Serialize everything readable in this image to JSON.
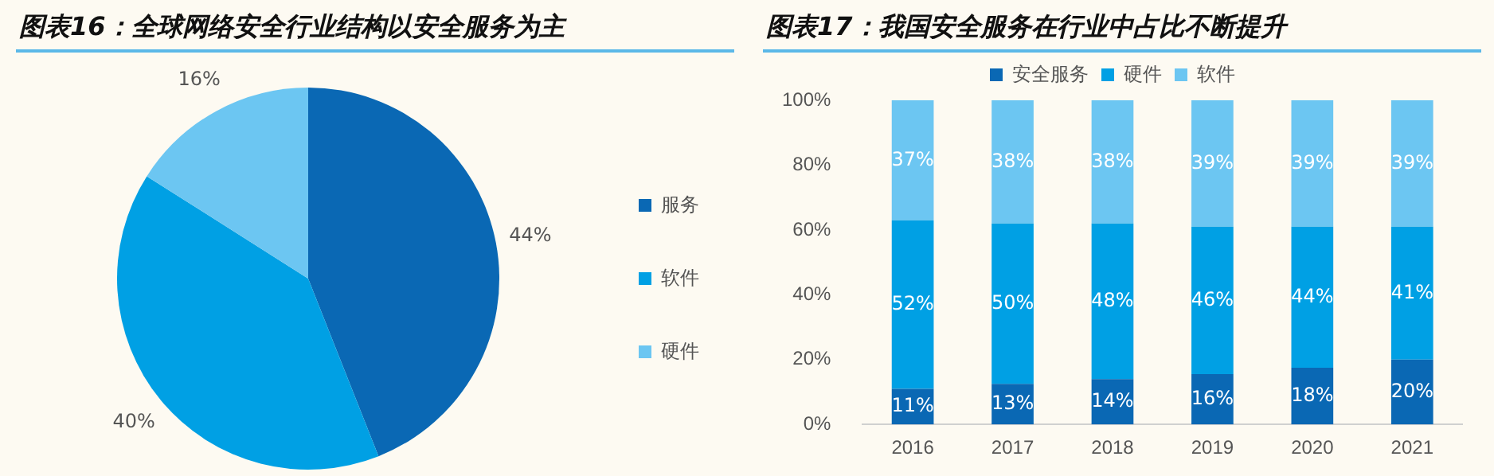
{
  "chart_data": [
    {
      "type": "pie",
      "title": "图表16：全球网络安全行业结构以安全服务为主",
      "categories": [
        "服务",
        "软件",
        "硬件"
      ],
      "values": [
        44,
        40,
        16
      ],
      "colors": [
        "#0a68b4",
        "#00a0e4",
        "#6cc6f2"
      ],
      "value_labels": [
        "44%",
        "40%",
        "16%"
      ],
      "legend": "right"
    },
    {
      "type": "bar",
      "title": "图表17：我国安全服务在行业中占比不断提升",
      "categories": [
        "2016",
        "2017",
        "2018",
        "2019",
        "2020",
        "2021"
      ],
      "stacked": true,
      "legend": "top",
      "grid": false,
      "ylim": [
        0,
        100
      ],
      "yticks": [
        {
          "value": 0,
          "label": "0%"
        },
        {
          "value": 20,
          "label": "20%"
        },
        {
          "value": 40,
          "label": "40%"
        },
        {
          "value": 60,
          "label": "60%"
        },
        {
          "value": 80,
          "label": "80%"
        },
        {
          "value": 100,
          "label": "100%"
        }
      ],
      "series": [
        {
          "name": "安全服务",
          "color": "#0a68b4",
          "values": [
            11,
            12.5,
            14,
            15.5,
            17.5,
            20
          ],
          "value_labels": [
            "11%",
            "13%",
            "14%",
            "16%",
            "18%",
            "20%"
          ]
        },
        {
          "name": "硬件",
          "color": "#00a0e4",
          "values": [
            52,
            49.5,
            48,
            45.5,
            43.5,
            41
          ],
          "value_labels": [
            "52%",
            "50%",
            "48%",
            "46%",
            "44%",
            "41%"
          ]
        },
        {
          "name": "软件",
          "color": "#6cc6f2",
          "values": [
            37,
            38,
            38,
            39,
            39,
            39
          ],
          "value_labels": [
            "37%",
            "38%",
            "38%",
            "39%",
            "39%",
            "39%"
          ]
        }
      ]
    }
  ]
}
